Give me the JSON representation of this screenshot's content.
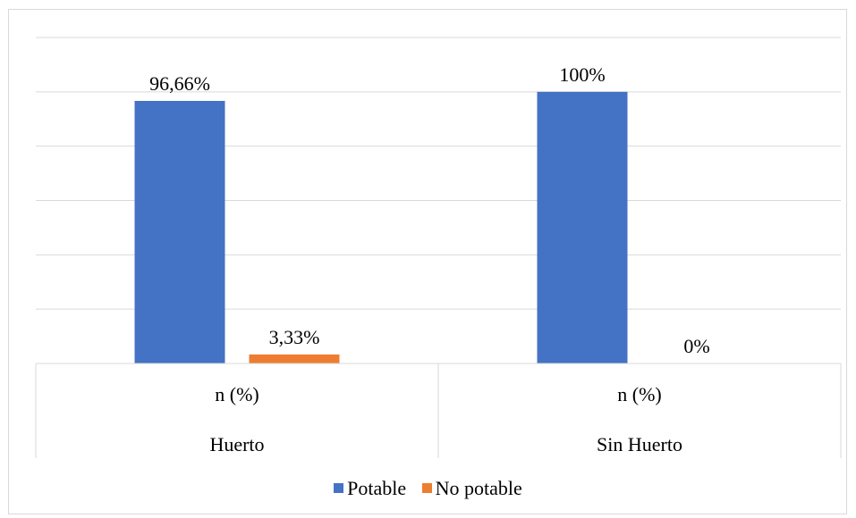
{
  "chart_data": {
    "type": "bar",
    "title": "",
    "xlabel": "",
    "ylabel": "",
    "ylim": [
      0,
      120
    ],
    "grid": true,
    "legend_position": "bottom",
    "categories": [
      {
        "top": "n (%)",
        "bottom": "Huerto"
      },
      {
        "top": "n (%)",
        "bottom": "Sin Huerto"
      }
    ],
    "series": [
      {
        "name": "Potable",
        "color": "#4472c4",
        "values": [
          96.66,
          100
        ],
        "labels": [
          "96,66%",
          "100%"
        ]
      },
      {
        "name": "No potable",
        "color": "#ed7d31",
        "values": [
          3.33,
          0
        ],
        "labels": [
          "3,33%",
          "0%"
        ]
      }
    ]
  }
}
